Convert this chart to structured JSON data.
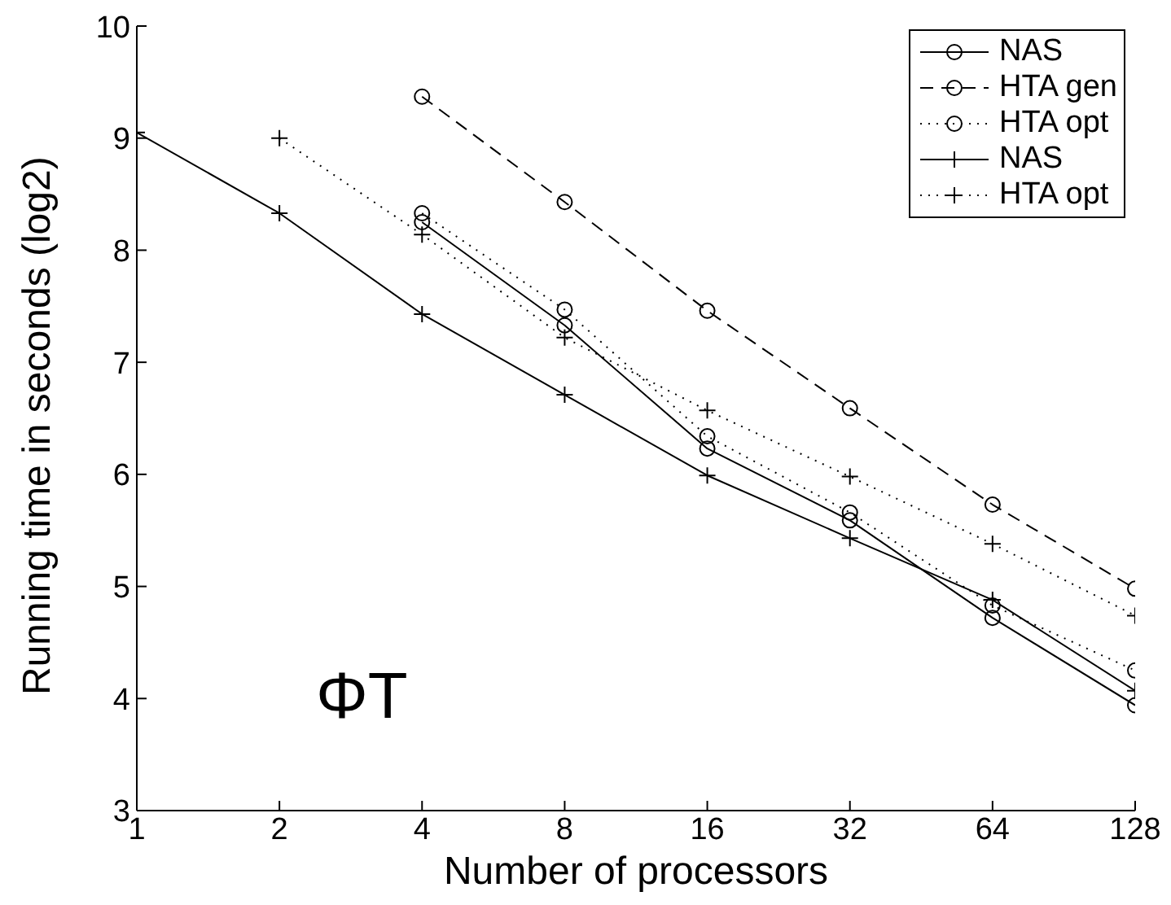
{
  "chart_data": {
    "type": "line",
    "xlabel": "Number of processors",
    "ylabel": "Running time in seconds (log2)",
    "log": "x",
    "xlim": [
      1,
      128
    ],
    "xticks": [
      1,
      2,
      4,
      8,
      16,
      32,
      64,
      128
    ],
    "ylim": [
      3,
      10
    ],
    "yticks": [
      3,
      4,
      5,
      6,
      7,
      8,
      9,
      10
    ],
    "legend": "top right",
    "annotations": [
      "ΦT"
    ],
    "series": [
      {
        "name": "NAS",
        "color": "#000000",
        "marker": "circle",
        "line_style": "solid",
        "x": [
          4,
          8,
          16,
          32,
          64,
          128
        ],
        "values": [
          8.25,
          7.33,
          6.23,
          5.59,
          4.72,
          3.94
        ]
      },
      {
        "name": "HTA gen",
        "color": "#000000",
        "marker": "circle",
        "line_style": "dashed",
        "x": [
          4,
          8,
          16,
          32,
          64,
          128
        ],
        "values": [
          9.37,
          8.43,
          7.46,
          6.59,
          5.73,
          4.98
        ]
      },
      {
        "name": "HTA opt",
        "color": "#000000",
        "marker": "circle",
        "line_style": "dotted",
        "x": [
          4,
          8,
          16,
          32,
          64,
          128
        ],
        "values": [
          8.33,
          7.47,
          6.34,
          5.66,
          4.83,
          4.25
        ]
      },
      {
        "name": "NAS",
        "color": "#000000",
        "marker": "cross",
        "line_style": "solid",
        "x": [
          1,
          2,
          4,
          8,
          16,
          32,
          64,
          128
        ],
        "values": [
          9.05,
          8.33,
          7.43,
          6.71,
          5.99,
          5.43,
          4.88,
          4.07
        ]
      },
      {
        "name": "HTA opt",
        "color": "#000000",
        "marker": "cross",
        "line_style": "dotted",
        "x": [
          2,
          4,
          8,
          16,
          32,
          64,
          128
        ],
        "values": [
          9.0,
          8.14,
          7.22,
          6.57,
          5.98,
          5.38,
          4.74
        ]
      }
    ]
  }
}
